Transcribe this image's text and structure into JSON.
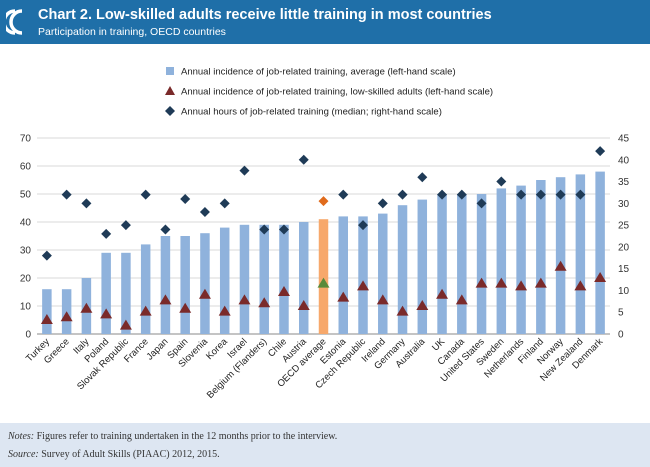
{
  "header": {
    "title": "Chart 2. Low-skilled adults receive little training in most countries",
    "subtitle": "Participation in training, OECD countries",
    "background_color": "#1f6fa8"
  },
  "legend": [
    {
      "label": "Annual incidence of job-related training, average (left-hand scale)",
      "marker": "bar",
      "color": "#8fb2dc"
    },
    {
      "label": "Annual incidence of job-related training, low-skilled adults (left-hand scale)",
      "marker": "triangle",
      "color": "#7a2a2a"
    },
    {
      "label": "Annual hours of job-related training (median; right-hand scale)",
      "marker": "diamond",
      "color": "#1f3b57"
    }
  ],
  "chart_data": {
    "type": "bar",
    "title": "",
    "xlabel": "",
    "ylabel": "",
    "ylim": [
      0,
      70
    ],
    "y_ticks": [
      0,
      10,
      20,
      30,
      40,
      50,
      60,
      70
    ],
    "y2lim": [
      0,
      45
    ],
    "y2_ticks": [
      0,
      5,
      10,
      15,
      20,
      25,
      30,
      35,
      40,
      45
    ],
    "grid": true,
    "legend_position": "top",
    "categories": [
      "Turkey",
      "Greece",
      "Italy",
      "Poland",
      "Slovak Republic",
      "France",
      "Japan",
      "Spain",
      "Slovenia",
      "Korea",
      "Israel",
      "Belgium (Flanders)",
      "Chile",
      "Austria",
      "OECD average",
      "Estonia",
      "Czech Republic",
      "Ireland",
      "Germany",
      "Australia",
      "UK",
      "Canada",
      "United States",
      "Sweden",
      "Netherlands",
      "Finland",
      "Norway",
      "New Zealand",
      "Denmark"
    ],
    "highlight_category": "OECD average",
    "series": [
      {
        "name": "Annual incidence of job-related training, average (left-hand scale)",
        "type": "bar",
        "axis": "left",
        "color": "#8fb2dc",
        "highlight_color": "#f7a86b",
        "values": [
          16,
          16,
          20,
          29,
          29,
          32,
          35,
          35,
          36,
          38,
          39,
          39,
          39,
          40,
          41,
          42,
          42,
          43,
          46,
          48,
          50,
          50,
          50,
          52,
          53,
          55,
          56,
          57,
          58
        ]
      },
      {
        "name": "Annual incidence of job-related training, low-skilled adults (left-hand scale)",
        "type": "triangle",
        "axis": "left",
        "color": "#7a2a2a",
        "highlight_color": "#5a8a3a",
        "values": [
          5,
          6,
          9,
          7,
          3,
          8,
          12,
          9,
          14,
          8,
          12,
          11,
          15,
          10,
          18,
          13,
          17,
          12,
          8,
          10,
          14,
          12,
          18,
          18,
          17,
          18,
          24,
          17,
          20
        ]
      },
      {
        "name": "Annual hours of job-related training (median; right-hand scale)",
        "type": "diamond",
        "axis": "right",
        "color": "#1f3b57",
        "highlight_color": "#e06b1c",
        "values": [
          18,
          32,
          30,
          23,
          25,
          32,
          24,
          31,
          28,
          30,
          37.5,
          24,
          24,
          40,
          30.5,
          32,
          25,
          30,
          32,
          36,
          32,
          32,
          30,
          35,
          32,
          32,
          32,
          32,
          42
        ]
      }
    ]
  },
  "notes": {
    "note_label": "Notes:",
    "note_text": " Figures refer to training undertaken in the 12 months prior to the interview.",
    "source_label": "Source:",
    "source_text": " Survey of Adult Skills (PIAAC) 2012, 2015."
  }
}
